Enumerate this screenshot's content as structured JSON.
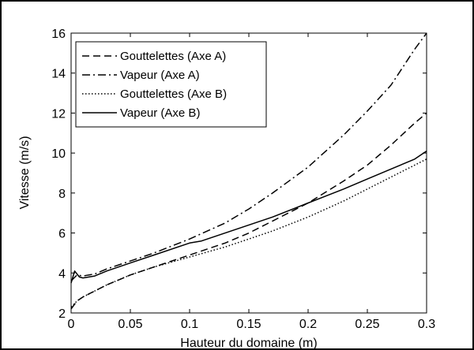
{
  "chart_data": {
    "type": "line",
    "title": "",
    "xlabel": "Hauteur du domaine (m)",
    "ylabel": "Vitesse (m/s)",
    "xlim": [
      0,
      0.3
    ],
    "ylim": [
      2,
      16
    ],
    "xticks": [
      0,
      0.05,
      0.1,
      0.15,
      0.2,
      0.25,
      0.3
    ],
    "xtick_labels": [
      "0",
      "0.05",
      "0.1",
      "0.15",
      "0.2",
      "0.25",
      "0.3"
    ],
    "yticks": [
      2,
      4,
      6,
      8,
      10,
      12,
      14,
      16
    ],
    "ytick_labels": [
      "2",
      "4",
      "6",
      "8",
      "10",
      "12",
      "14",
      "16"
    ],
    "grid": false,
    "legend_position": "top-left",
    "series": [
      {
        "name": "Gouttelettes (Axe A)",
        "style": "dashed",
        "color": "#000000",
        "x": [
          0,
          0.005,
          0.01,
          0.02,
          0.03,
          0.05,
          0.07,
          0.1,
          0.13,
          0.15,
          0.17,
          0.2,
          0.23,
          0.25,
          0.27,
          0.29,
          0.3
        ],
        "y": [
          2.2,
          2.6,
          2.8,
          3.1,
          3.4,
          3.9,
          4.3,
          4.9,
          5.5,
          6.0,
          6.6,
          7.5,
          8.6,
          9.4,
          10.4,
          11.5,
          12.0
        ]
      },
      {
        "name": "Vapeur (Axe A)",
        "style": "dashdot",
        "color": "#000000",
        "x": [
          0,
          0.005,
          0.01,
          0.02,
          0.03,
          0.05,
          0.07,
          0.1,
          0.13,
          0.15,
          0.17,
          0.2,
          0.23,
          0.25,
          0.27,
          0.29,
          0.3
        ],
        "y": [
          3.6,
          3.9,
          3.85,
          3.95,
          4.2,
          4.6,
          5.0,
          5.7,
          6.5,
          7.2,
          8.0,
          9.3,
          10.9,
          12.1,
          13.4,
          15.2,
          16.0
        ]
      },
      {
        "name": "Gouttelettes (Axe B)",
        "style": "dotted",
        "color": "#000000",
        "x": [
          0,
          0.005,
          0.01,
          0.02,
          0.03,
          0.05,
          0.07,
          0.1,
          0.13,
          0.15,
          0.17,
          0.2,
          0.23,
          0.25,
          0.27,
          0.29,
          0.3
        ],
        "y": [
          2.3,
          2.6,
          2.8,
          3.1,
          3.4,
          3.9,
          4.3,
          4.8,
          5.3,
          5.7,
          6.1,
          6.8,
          7.6,
          8.2,
          8.8,
          9.4,
          9.7
        ]
      },
      {
        "name": "Vapeur (Axe B)",
        "style": "solid",
        "color": "#000000",
        "x": [
          0,
          0.003,
          0.007,
          0.01,
          0.015,
          0.02,
          0.03,
          0.05,
          0.07,
          0.1,
          0.11,
          0.13,
          0.15,
          0.17,
          0.2,
          0.23,
          0.25,
          0.27,
          0.29,
          0.3
        ],
        "y": [
          3.5,
          4.1,
          3.8,
          3.75,
          3.8,
          3.85,
          4.1,
          4.5,
          4.9,
          5.5,
          5.6,
          6.0,
          6.4,
          6.8,
          7.5,
          8.2,
          8.7,
          9.2,
          9.7,
          10.1
        ]
      }
    ]
  }
}
